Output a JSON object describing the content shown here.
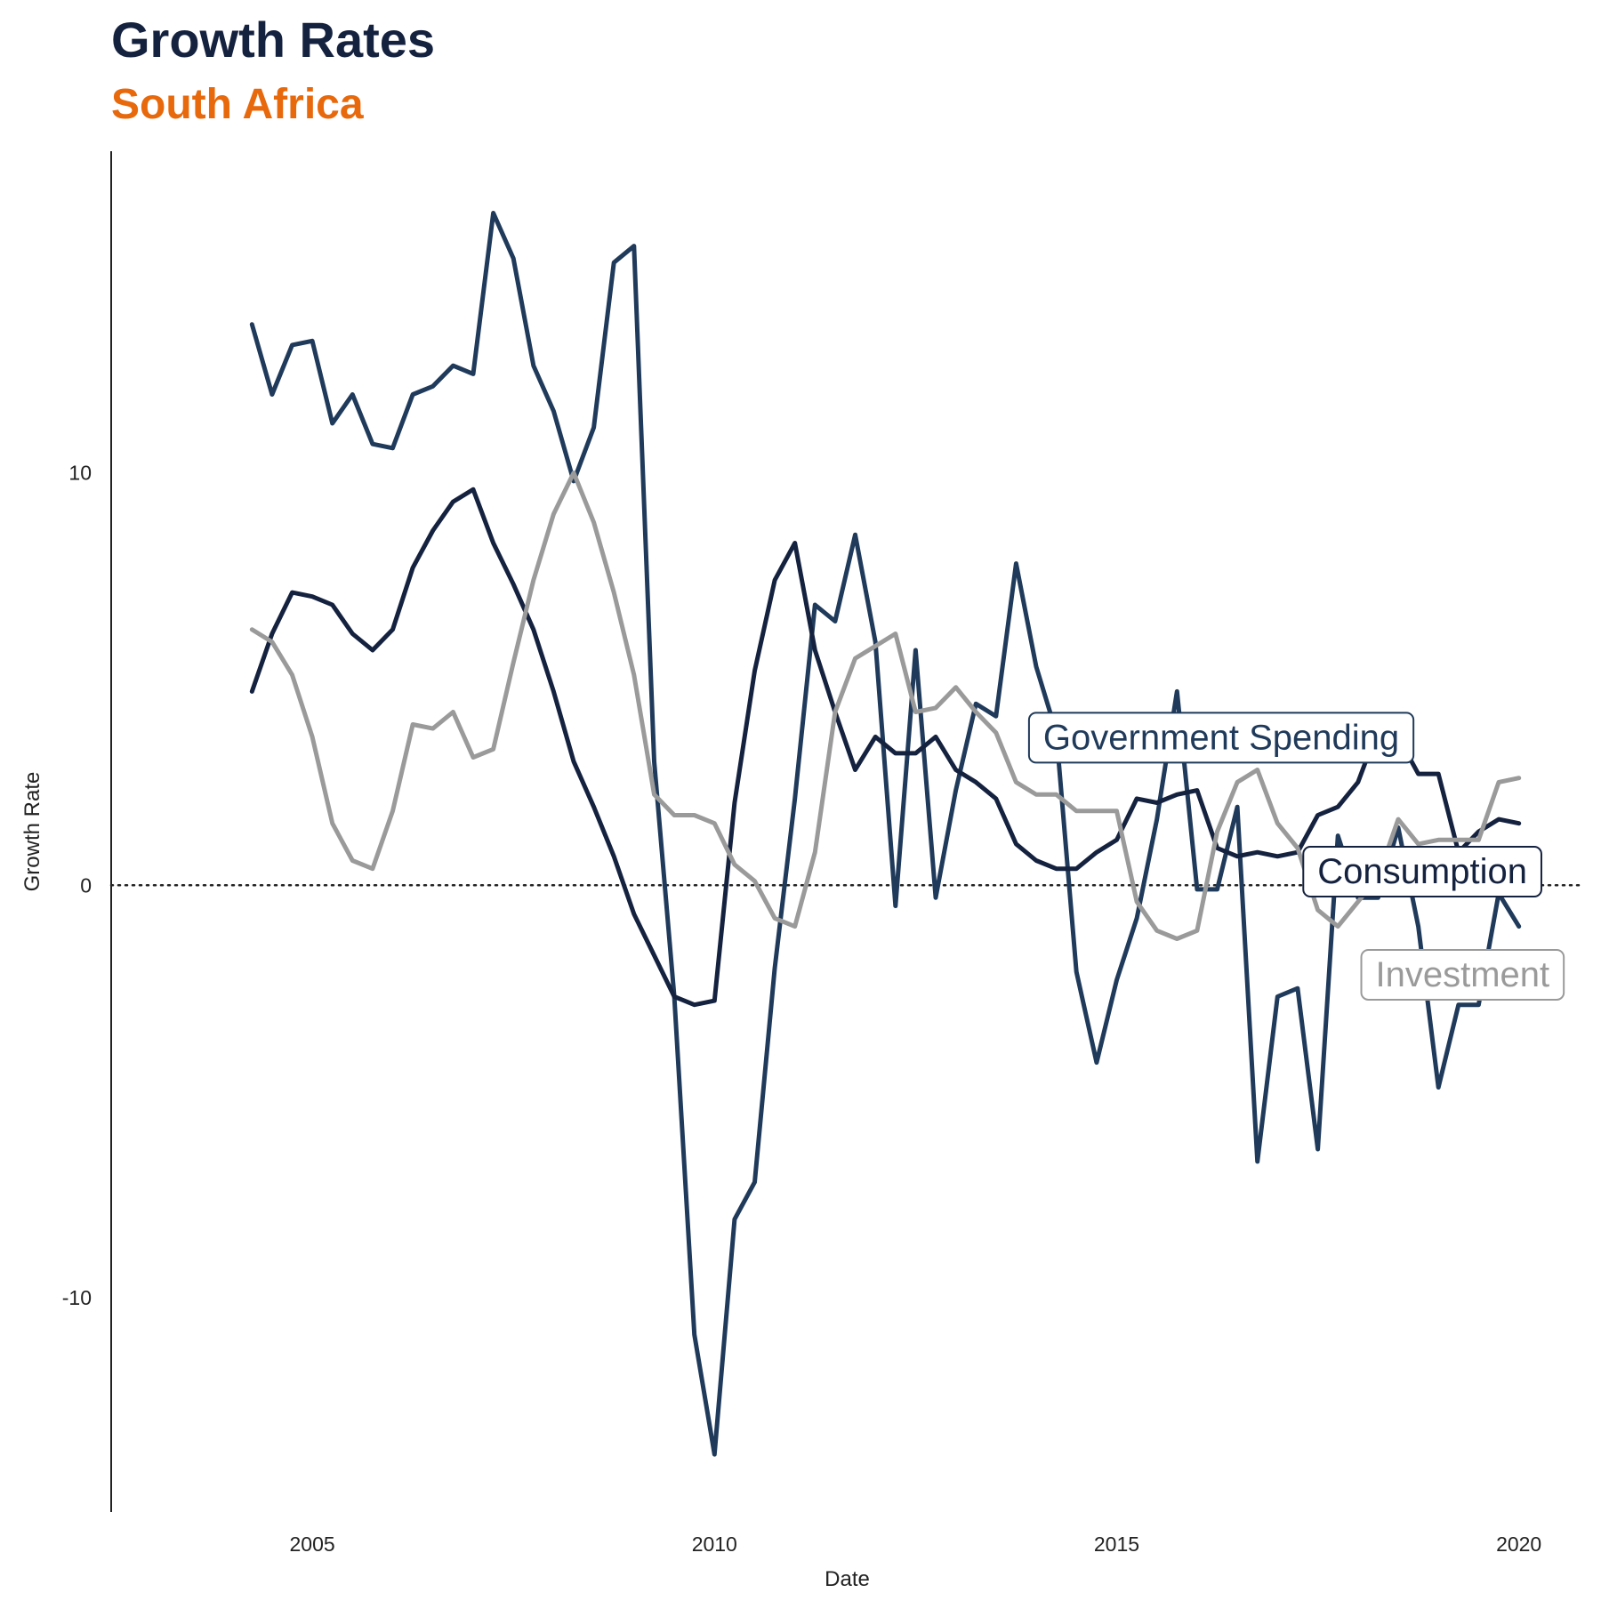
{
  "chart_data": {
    "type": "line",
    "title": "Growth Rates",
    "subtitle": "South Africa",
    "xlabel": "Date",
    "ylabel": "Growth Rate",
    "xlim": [
      2002.5,
      2020.8
    ],
    "ylim": [
      -15.2,
      17.8
    ],
    "x_ticks": [
      2005,
      2010,
      2015,
      2020
    ],
    "y_ticks": [
      -10,
      0,
      10
    ],
    "reference_line": {
      "y": 0,
      "style": "dotted"
    },
    "grid": false,
    "legend": "direct labels",
    "x": [
      2004.25,
      2004.5,
      2004.75,
      2005.0,
      2005.25,
      2005.5,
      2005.75,
      2006.0,
      2006.25,
      2006.5,
      2006.75,
      2007.0,
      2007.25,
      2007.5,
      2007.75,
      2008.0,
      2008.25,
      2008.5,
      2008.75,
      2009.0,
      2009.25,
      2009.5,
      2009.75,
      2010.0,
      2010.25,
      2010.5,
      2010.75,
      2011.0,
      2011.25,
      2011.5,
      2011.75,
      2012.0,
      2012.25,
      2012.5,
      2012.75,
      2013.0,
      2013.25,
      2013.5,
      2013.75,
      2014.0,
      2014.25,
      2014.5,
      2014.75,
      2015.0,
      2015.25,
      2015.5,
      2015.75,
      2016.0,
      2016.25,
      2016.5,
      2016.75,
      2017.0,
      2017.25,
      2017.5,
      2017.75,
      2018.0,
      2018.25,
      2018.5,
      2018.75,
      2019.0,
      2019.25,
      2019.5,
      2019.75,
      2020.0
    ],
    "series": [
      {
        "name": "Government Spending",
        "color": "#1f3a5a",
        "values": [
          13.6,
          11.9,
          13.1,
          13.2,
          11.2,
          11.9,
          10.7,
          10.6,
          11.9,
          12.1,
          12.6,
          12.4,
          16.3,
          15.2,
          12.6,
          11.5,
          9.8,
          11.1,
          15.1,
          15.5,
          3.0,
          -2.7,
          -10.9,
          -13.8,
          -8.1,
          -7.2,
          -2.0,
          2.1,
          6.8,
          6.4,
          8.5,
          5.9,
          -0.5,
          5.7,
          -0.3,
          2.3,
          4.4,
          4.1,
          7.8,
          5.3,
          3.7,
          -2.1,
          -4.3,
          -2.3,
          -0.8,
          1.6,
          4.7,
          -0.1,
          -0.1,
          1.9,
          -6.7,
          -2.7,
          -2.5,
          -6.4,
          1.2,
          -0.3,
          -0.3,
          1.4,
          -1.0,
          -4.9,
          -2.9,
          -2.9,
          -0.2,
          -1.0
        ]
      },
      {
        "name": "Consumption",
        "color": "#15223f",
        "values": [
          4.7,
          6.1,
          7.1,
          7.0,
          6.8,
          6.1,
          5.7,
          6.2,
          7.7,
          8.6,
          9.3,
          9.6,
          8.3,
          7.3,
          6.2,
          4.7,
          3.0,
          1.9,
          0.7,
          -0.7,
          -1.7,
          -2.7,
          -2.9,
          -2.8,
          2.0,
          5.2,
          7.4,
          8.3,
          5.7,
          4.2,
          2.8,
          3.6,
          3.2,
          3.2,
          3.6,
          2.8,
          2.5,
          2.1,
          1.0,
          0.6,
          0.4,
          0.4,
          0.8,
          1.1,
          2.1,
          2.0,
          2.2,
          2.3,
          0.9,
          0.7,
          0.8,
          0.7,
          0.8,
          1.7,
          1.9,
          2.5,
          3.8,
          3.6,
          2.7,
          2.7,
          0.8,
          1.3,
          1.6,
          1.5
        ]
      },
      {
        "name": "Investment",
        "color": "#9a9a9a",
        "values": [
          6.2,
          5.9,
          5.1,
          3.6,
          1.5,
          0.6,
          0.4,
          1.8,
          3.9,
          3.8,
          4.2,
          3.1,
          3.3,
          5.4,
          7.4,
          9.0,
          10.0,
          8.8,
          7.1,
          5.1,
          2.2,
          1.7,
          1.7,
          1.5,
          0.5,
          0.1,
          -0.8,
          -1.0,
          0.8,
          4.2,
          5.5,
          5.8,
          6.1,
          4.2,
          4.3,
          4.8,
          4.2,
          3.7,
          2.5,
          2.2,
          2.2,
          1.8,
          1.8,
          1.8,
          -0.4,
          -1.1,
          -1.3,
          -1.1,
          1.3,
          2.5,
          2.8,
          1.5,
          0.9,
          -0.6,
          -1.0,
          -0.4,
          0.2,
          1.6,
          1.0,
          1.1,
          1.1,
          1.1,
          2.5,
          2.6
        ]
      }
    ],
    "labels": [
      {
        "series": "Government Spending",
        "text": "Government Spending",
        "x": 2016.3,
        "y": 3.6
      },
      {
        "series": "Consumption",
        "text": "Consumption",
        "x": 2018.8,
        "y": 0.35
      },
      {
        "series": "Investment",
        "text": "Investment",
        "x": 2019.3,
        "y": -2.15
      }
    ]
  }
}
